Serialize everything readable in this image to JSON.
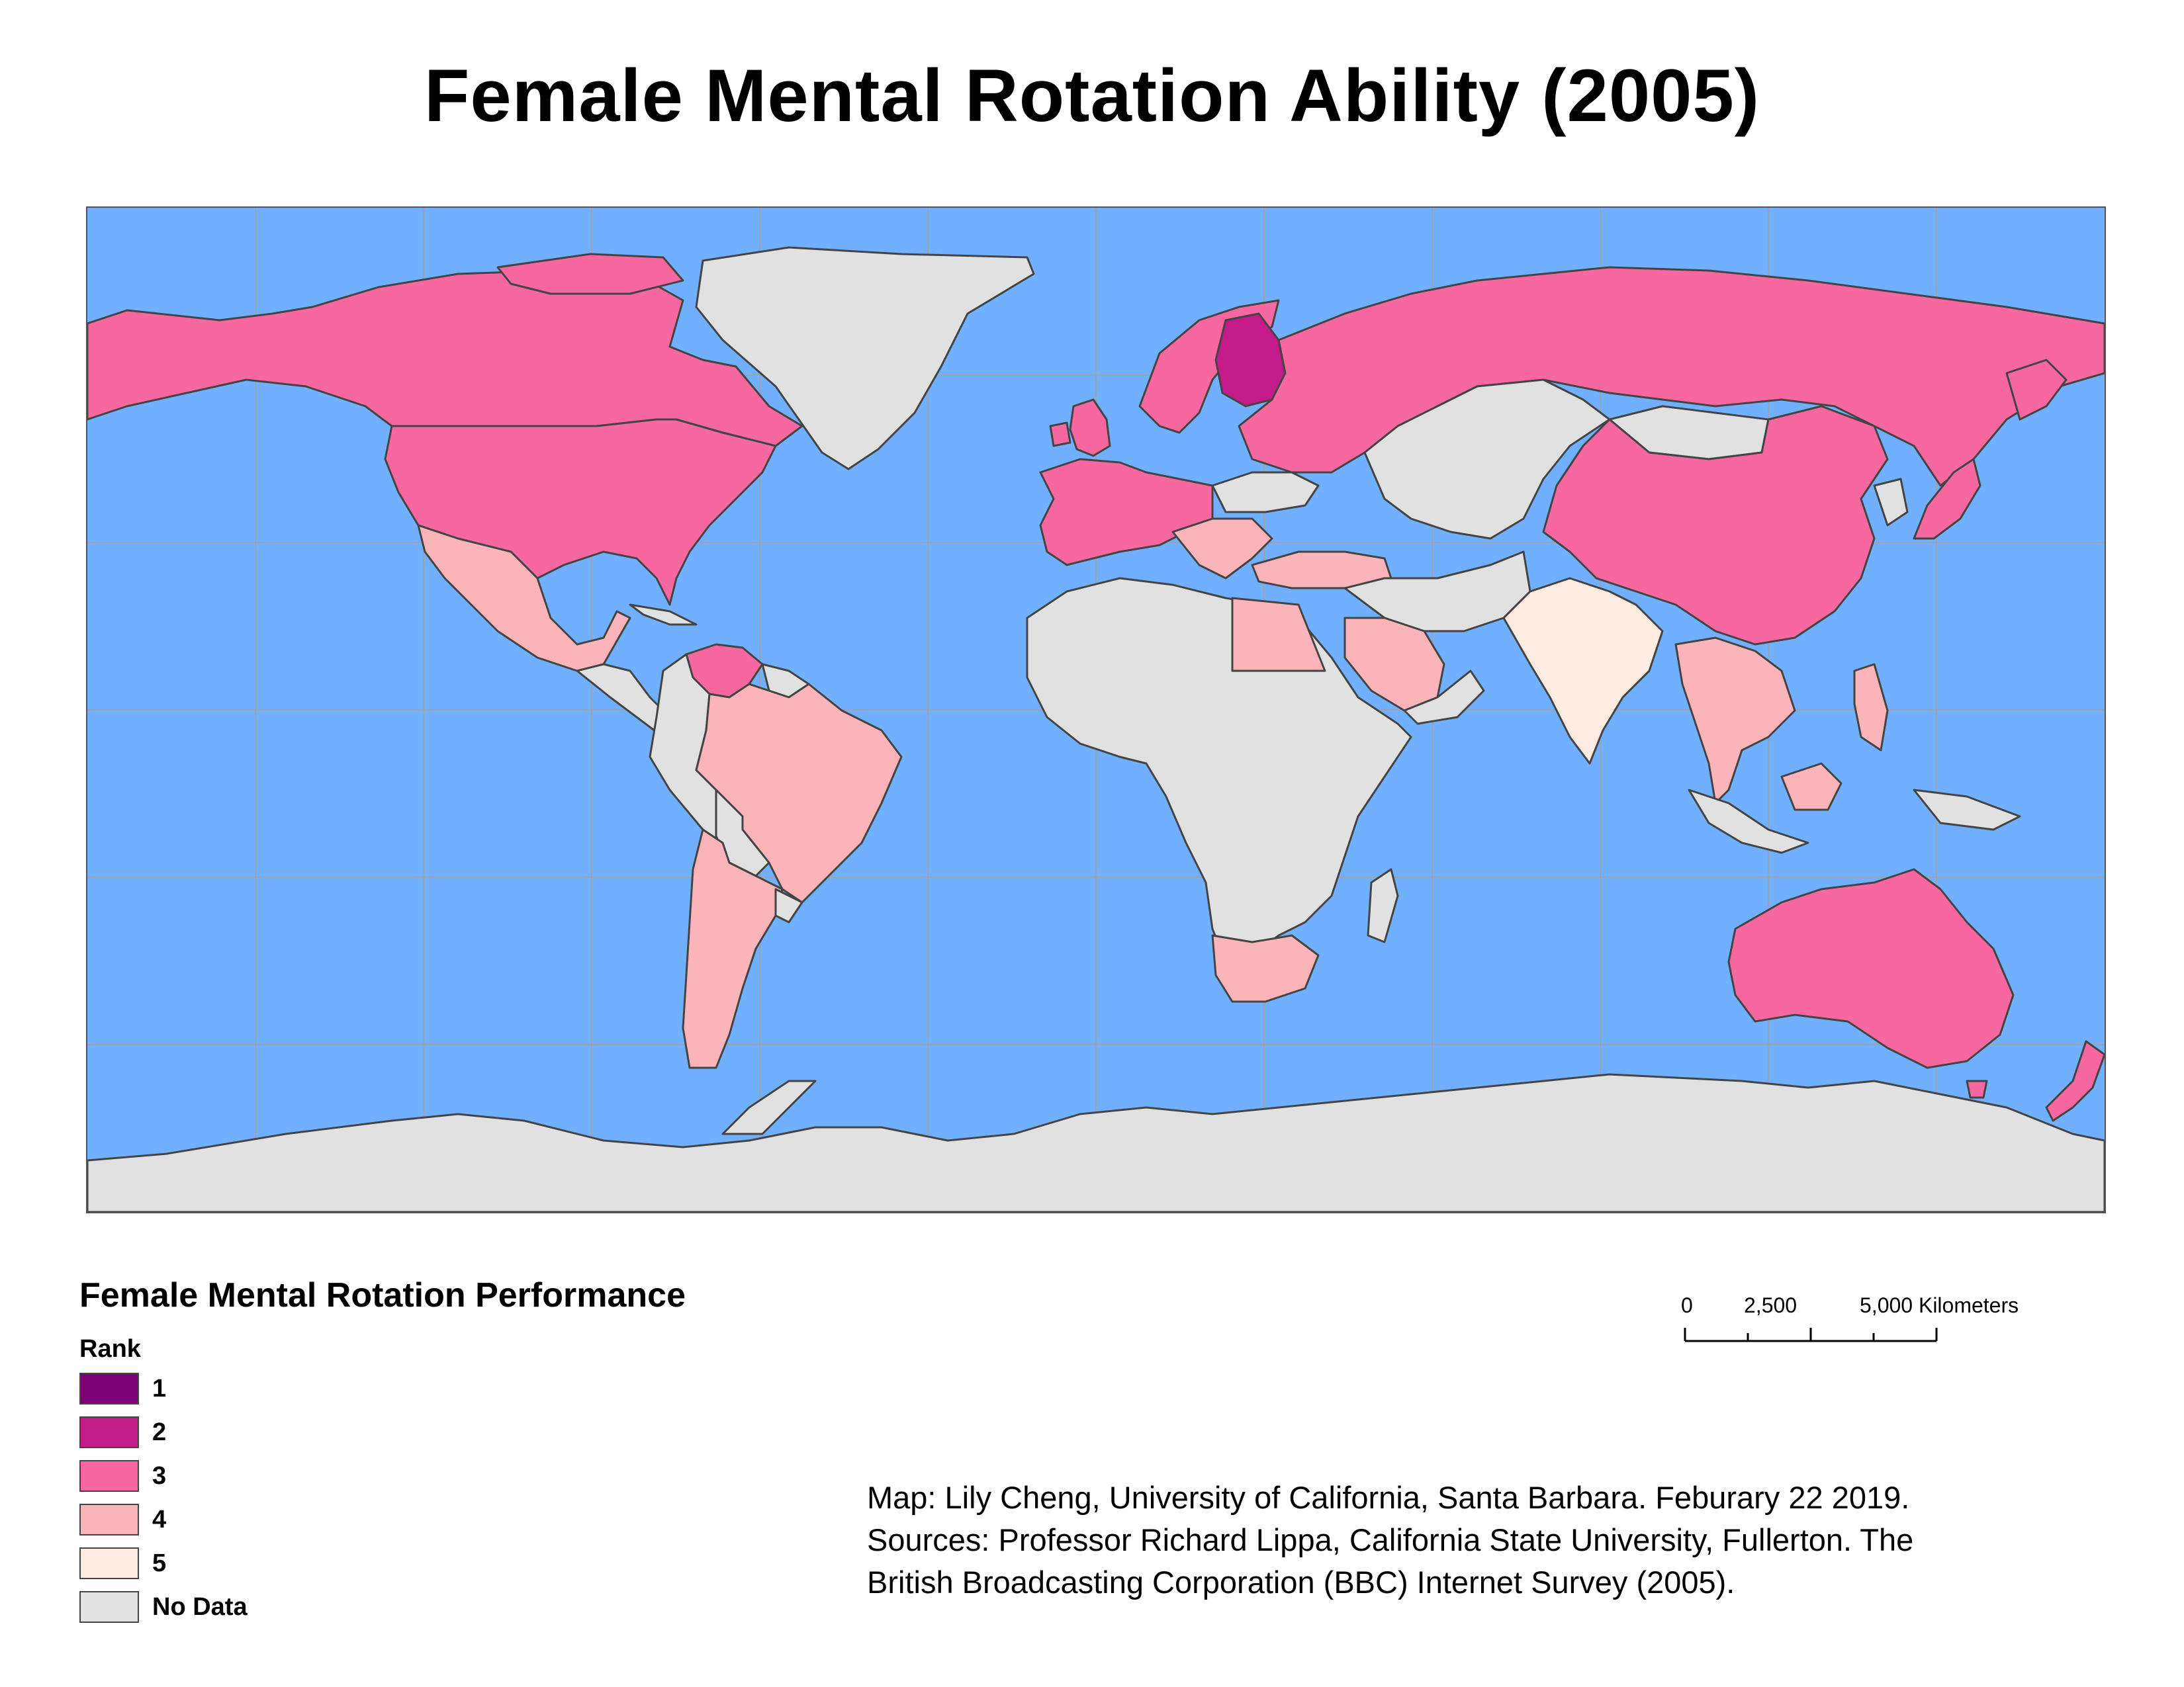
{
  "title": "Female Mental Rotation Ability (2005)",
  "colors": {
    "ocean": "#70B0FF",
    "no_data": "#E1E1E1",
    "rank_1": "#7A0177",
    "rank_2": "#C51B8A",
    "rank_3": "#F768A1",
    "rank_4": "#FBB4B9",
    "rank_5": "#FEEBE2",
    "graticule": "#9AA4B0",
    "border": "#444444"
  },
  "legend": {
    "title": "Female Mental Rotation Performance",
    "subtitle": "Rank",
    "items": [
      {
        "label": "1",
        "color": "#7A0177"
      },
      {
        "label": "2",
        "color": "#C51B8A"
      },
      {
        "label": "3",
        "color": "#F768A1"
      },
      {
        "label": "4",
        "color": "#FBB4B9"
      },
      {
        "label": "5",
        "color": "#FEEBE2"
      },
      {
        "label": "No Data",
        "color": "#E1E1E1"
      }
    ]
  },
  "scalebar": {
    "ticks": [
      "0",
      "2,500",
      "5,000 Kilometers"
    ]
  },
  "credits": {
    "line1": "Map: Lily Cheng, University of California, Santa Barbara. Feburary 22 2019.",
    "line2": "Sources: Professor Richard Lippa, California State University, Fullerton. The",
    "line3": "British Broadcasting Corporation (BBC) Internet Survey (2005)."
  },
  "regions": [
    {
      "name": "Finland",
      "rank": 2
    },
    {
      "name": "Canada",
      "rank": 3
    },
    {
      "name": "United States",
      "rank": 3
    },
    {
      "name": "Russia",
      "rank": 3
    },
    {
      "name": "China",
      "rank": 3
    },
    {
      "name": "Australia",
      "rank": 3
    },
    {
      "name": "New Zealand",
      "rank": 3
    },
    {
      "name": "Venezuela",
      "rank": 3
    },
    {
      "name": "Western Europe",
      "rank": 3
    },
    {
      "name": "Japan",
      "rank": 3
    },
    {
      "name": "Mexico",
      "rank": 4
    },
    {
      "name": "Brazil",
      "rank": 4
    },
    {
      "name": "Argentina",
      "rank": 4
    },
    {
      "name": "Egypt",
      "rank": 4
    },
    {
      "name": "Saudi Arabia",
      "rank": 4
    },
    {
      "name": "South Africa",
      "rank": 4
    },
    {
      "name": "Turkey",
      "rank": 4
    },
    {
      "name": "Southeast Asia",
      "rank": 4
    },
    {
      "name": "India",
      "rank": 5
    },
    {
      "name": "Greenland",
      "rank": null
    },
    {
      "name": "Africa",
      "rank": null
    },
    {
      "name": "Central Asia",
      "rank": null
    },
    {
      "name": "Antarctica",
      "rank": null
    },
    {
      "name": "South America (other)",
      "rank": null
    }
  ]
}
